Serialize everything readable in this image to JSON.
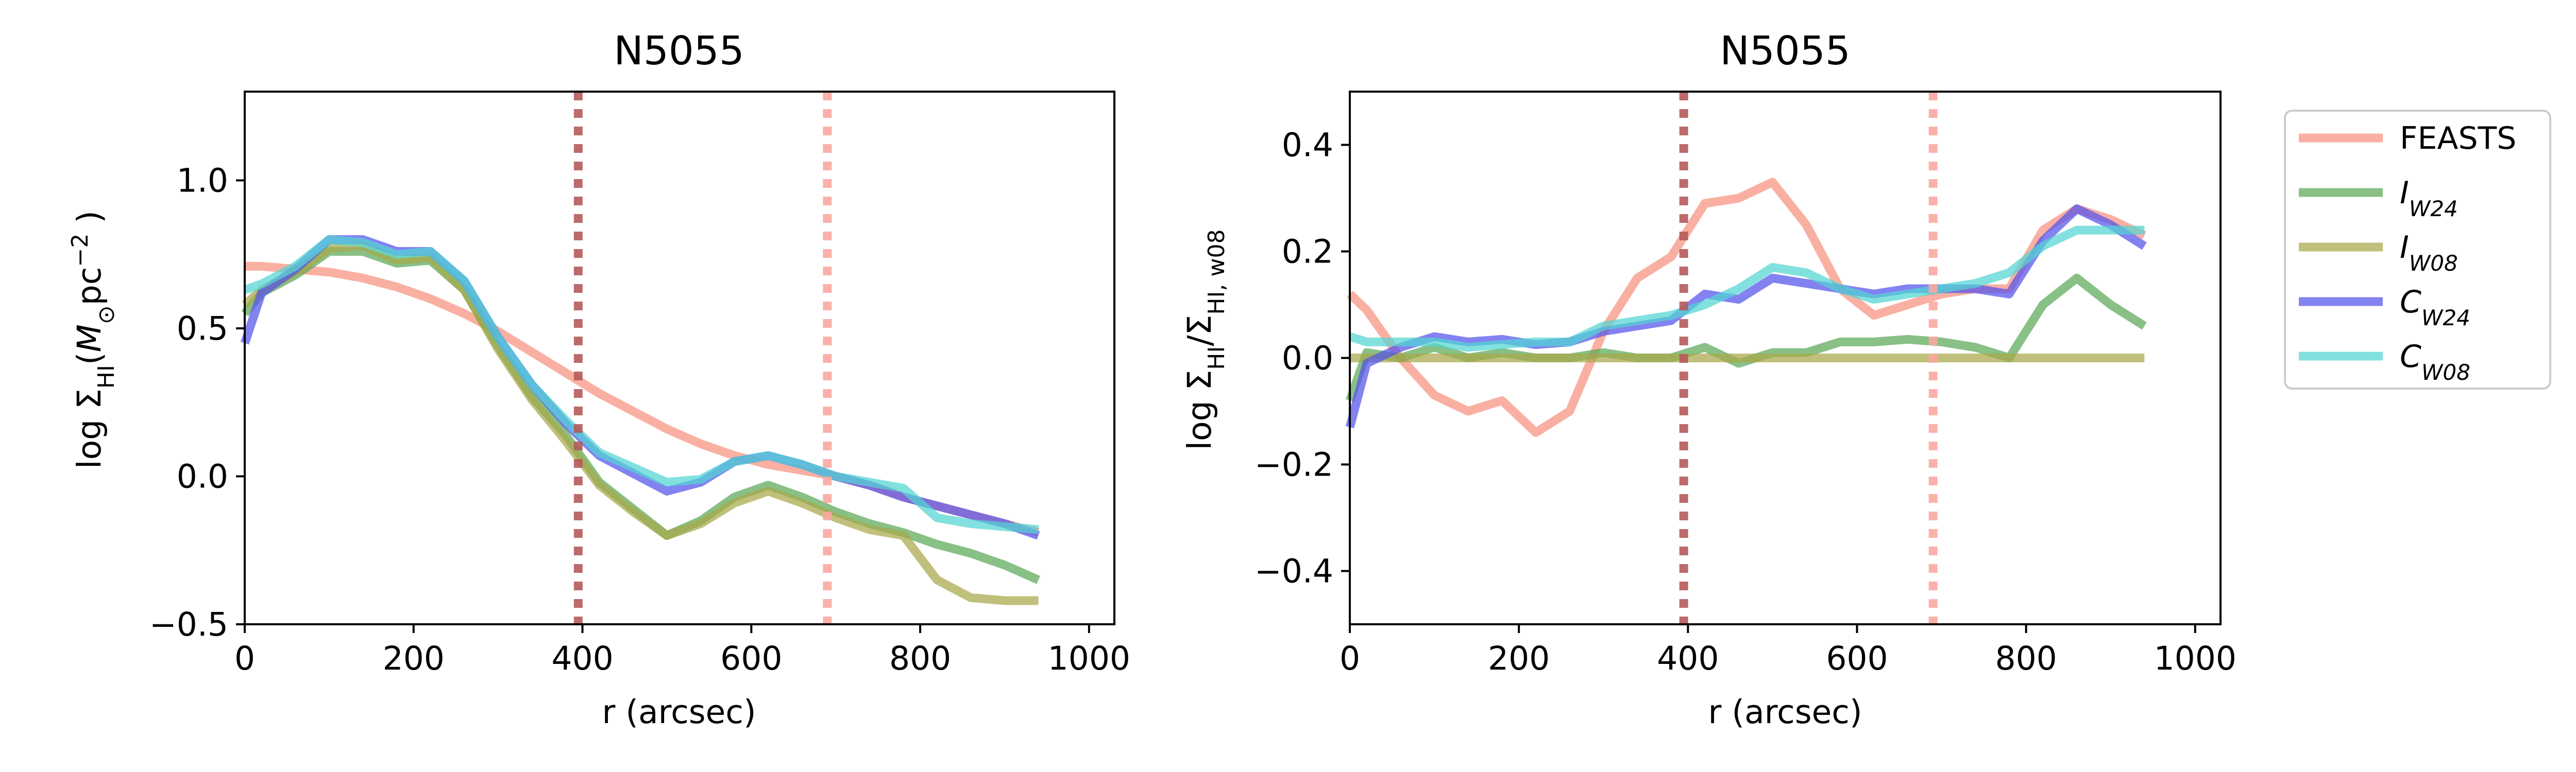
{
  "colors": {
    "FEASTS": "#f7917e",
    "I_W24": "#5aa857",
    "I_W08": "#a8a84a",
    "C_W24": "#5352ec",
    "C_W08": "#52d6d2",
    "vline_inner": "#b55a5a",
    "vline_outer": "#f9a8a0"
  },
  "legend": {
    "placement": "outside-right",
    "entries": [
      {
        "key": "FEASTS",
        "label": "FEASTS",
        "sub": ""
      },
      {
        "key": "I_W24",
        "label": "I",
        "sub": "W24"
      },
      {
        "key": "I_W08",
        "label": "I",
        "sub": "W08"
      },
      {
        "key": "C_W24",
        "label": "C",
        "sub": "W24"
      },
      {
        "key": "C_W08",
        "label": "C",
        "sub": "W08"
      }
    ]
  },
  "chart_data": [
    {
      "type": "line",
      "title": "N5055",
      "xlabel": "r (arcsec)",
      "ylabel": "log Σ_HI(M_⊙pc^-2 )",
      "xlim": [
        0,
        1030
      ],
      "ylim": [
        -0.5,
        1.3
      ],
      "xticks": [
        0,
        200,
        400,
        600,
        800,
        1000
      ],
      "yticks": [
        -0.5,
        0.0,
        0.5,
        1.0
      ],
      "ytick_labels": [
        "−0.5",
        "0.0",
        "0.5",
        "1.0"
      ],
      "grid": false,
      "vlines": [
        {
          "x": 395,
          "color_key": "vline_inner"
        },
        {
          "x": 690,
          "color_key": "vline_outer"
        }
      ],
      "x": [
        0,
        20,
        60,
        100,
        140,
        180,
        220,
        260,
        300,
        340,
        380,
        420,
        460,
        500,
        540,
        580,
        620,
        660,
        700,
        740,
        780,
        820,
        860,
        900,
        940
      ],
      "series": [
        {
          "key": "FEASTS",
          "values": [
            0.71,
            0.71,
            0.7,
            0.69,
            0.67,
            0.64,
            0.6,
            0.55,
            0.49,
            0.42,
            0.35,
            0.28,
            0.22,
            0.16,
            0.11,
            0.07,
            0.04,
            0.02,
            0.0,
            -0.03,
            -0.07,
            -0.1,
            -0.13,
            -0.16,
            -0.19
          ]
        },
        {
          "key": "I_W24",
          "values": [
            0.55,
            0.62,
            0.68,
            0.76,
            0.76,
            0.72,
            0.73,
            0.63,
            0.44,
            0.27,
            0.14,
            -0.02,
            -0.11,
            -0.2,
            -0.15,
            -0.07,
            -0.03,
            -0.07,
            -0.12,
            -0.16,
            -0.19,
            -0.23,
            -0.26,
            -0.3,
            -0.35
          ]
        },
        {
          "key": "I_W08",
          "values": [
            0.58,
            0.63,
            0.69,
            0.77,
            0.78,
            0.73,
            0.74,
            0.63,
            0.43,
            0.26,
            0.12,
            -0.03,
            -0.12,
            -0.2,
            -0.16,
            -0.09,
            -0.05,
            -0.09,
            -0.14,
            -0.18,
            -0.2,
            -0.35,
            -0.41,
            -0.42,
            -0.42
          ]
        },
        {
          "key": "C_W24",
          "values": [
            0.45,
            0.62,
            0.7,
            0.8,
            0.8,
            0.76,
            0.76,
            0.66,
            0.47,
            0.31,
            0.18,
            0.07,
            0.01,
            -0.05,
            -0.02,
            0.05,
            0.07,
            0.04,
            0.0,
            -0.03,
            -0.07,
            -0.1,
            -0.13,
            -0.16,
            -0.2
          ]
        },
        {
          "key": "C_W08",
          "values": [
            0.63,
            0.65,
            0.71,
            0.8,
            0.79,
            0.75,
            0.76,
            0.66,
            0.47,
            0.31,
            0.19,
            0.08,
            0.03,
            -0.02,
            -0.01,
            0.05,
            0.07,
            0.04,
            0.0,
            -0.02,
            -0.04,
            -0.14,
            -0.16,
            -0.17,
            -0.18
          ]
        }
      ]
    },
    {
      "type": "line",
      "title": "N5055",
      "xlabel": "r (arcsec)",
      "ylabel": "log Σ_HI/Σ_HI, w08",
      "xlim": [
        0,
        1030
      ],
      "ylim": [
        -0.5,
        0.5
      ],
      "xticks": [
        0,
        200,
        400,
        600,
        800,
        1000
      ],
      "yticks": [
        -0.4,
        -0.2,
        0.0,
        0.2,
        0.4
      ],
      "ytick_labels": [
        "−0.4",
        "−0.2",
        "0.0",
        "0.2",
        "0.4"
      ],
      "grid": false,
      "vlines": [
        {
          "x": 395,
          "color_key": "vline_inner"
        },
        {
          "x": 690,
          "color_key": "vline_outer"
        }
      ],
      "x": [
        0,
        20,
        60,
        100,
        140,
        180,
        220,
        260,
        300,
        340,
        380,
        420,
        460,
        500,
        540,
        580,
        620,
        660,
        700,
        740,
        780,
        820,
        860,
        900,
        940
      ],
      "series": [
        {
          "key": "FEASTS",
          "values": [
            0.12,
            0.09,
            0.0,
            -0.07,
            -0.1,
            -0.08,
            -0.14,
            -0.1,
            0.05,
            0.15,
            0.19,
            0.29,
            0.3,
            0.33,
            0.25,
            0.13,
            0.08,
            0.1,
            0.12,
            0.13,
            0.13,
            0.24,
            0.28,
            0.26,
            0.23
          ]
        },
        {
          "key": "I_W24",
          "values": [
            -0.08,
            0.01,
            0.0,
            0.02,
            0.0,
            0.01,
            0.0,
            0.0,
            0.01,
            0.0,
            0.0,
            0.02,
            -0.01,
            0.01,
            0.01,
            0.03,
            0.03,
            0.035,
            0.03,
            0.02,
            0.0,
            0.1,
            0.15,
            0.1,
            0.06
          ]
        },
        {
          "key": "I_W08",
          "values": [
            0.0,
            0.0,
            0.0,
            0.0,
            0.0,
            0.0,
            0.0,
            0.0,
            0.0,
            0.0,
            0.0,
            0.0,
            0.0,
            0.0,
            0.0,
            0.0,
            0.0,
            0.0,
            0.0,
            0.0,
            0.0,
            0.0,
            0.0,
            0.0,
            0.0
          ]
        },
        {
          "key": "C_W24",
          "values": [
            -0.13,
            -0.01,
            0.02,
            0.04,
            0.03,
            0.035,
            0.025,
            0.03,
            0.05,
            0.06,
            0.07,
            0.12,
            0.11,
            0.15,
            0.14,
            0.13,
            0.12,
            0.13,
            0.13,
            0.13,
            0.12,
            0.22,
            0.28,
            0.25,
            0.21
          ]
        },
        {
          "key": "C_W08",
          "values": [
            0.04,
            0.03,
            0.03,
            0.03,
            0.02,
            0.025,
            0.03,
            0.03,
            0.06,
            0.07,
            0.08,
            0.1,
            0.13,
            0.17,
            0.16,
            0.13,
            0.11,
            0.12,
            0.13,
            0.14,
            0.16,
            0.21,
            0.24,
            0.24,
            0.24
          ]
        }
      ]
    }
  ]
}
